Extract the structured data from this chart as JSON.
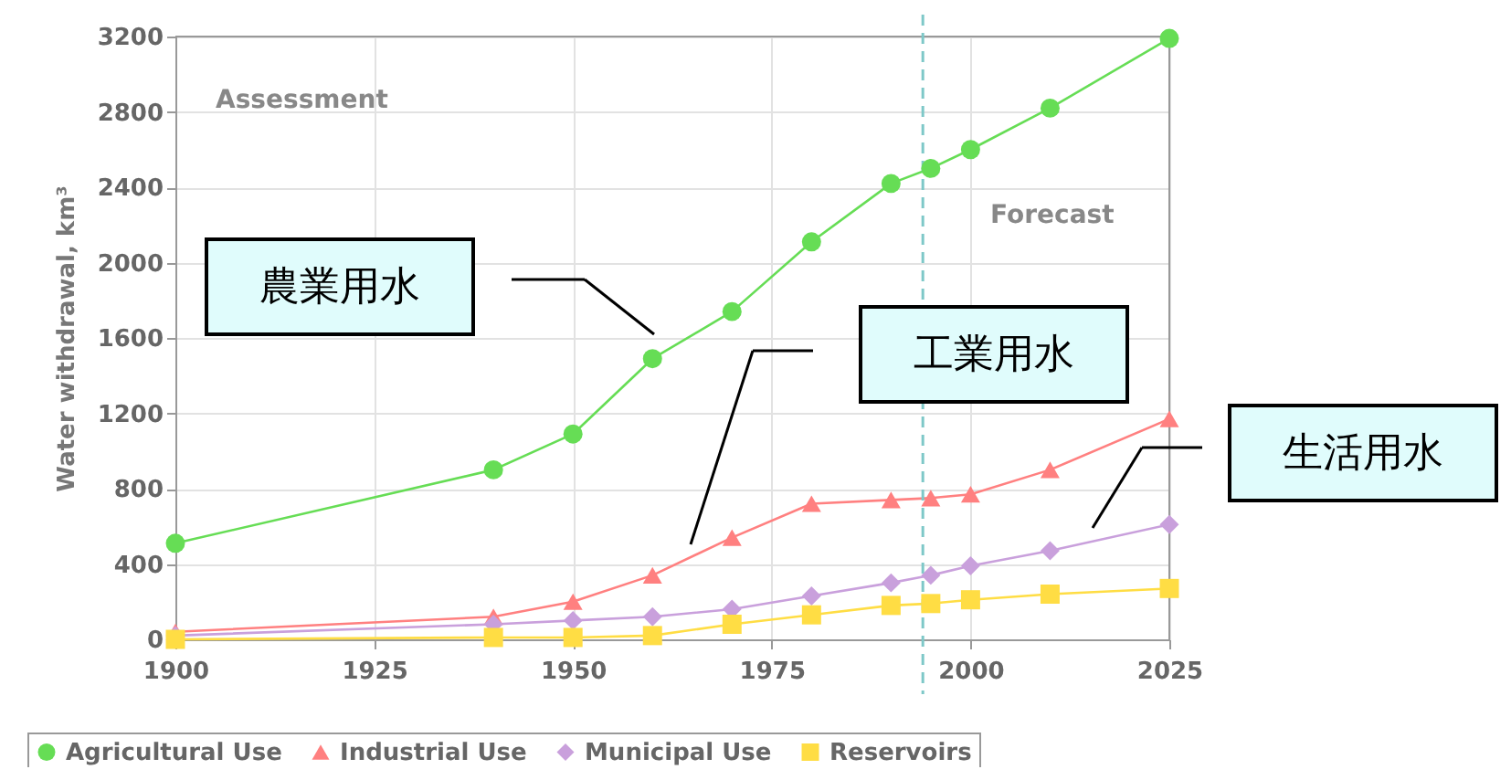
{
  "chart_data": {
    "type": "line",
    "ylabel": "Water withdrawal, km³",
    "x": [
      1900,
      1940,
      1950,
      1960,
      1970,
      1980,
      1990,
      1995,
      2000,
      2010,
      2025
    ],
    "series": [
      {
        "name": "Agricultural Use",
        "color": "#66dd55",
        "marker": "circle",
        "values": [
          510,
          900,
          1090,
          1490,
          1740,
          2110,
          2420,
          2500,
          2600,
          2820,
          3190
        ]
      },
      {
        "name": "Industrial Use",
        "color": "#ff8080",
        "marker": "triangle",
        "values": [
          40,
          120,
          200,
          340,
          540,
          720,
          740,
          750,
          770,
          900,
          1170
        ]
      },
      {
        "name": "Municipal Use",
        "color": "#c9a0dc",
        "marker": "diamond",
        "values": [
          20,
          80,
          100,
          120,
          160,
          230,
          300,
          340,
          390,
          470,
          610
        ]
      },
      {
        "name": "Reservoirs",
        "color": "#ffdd44",
        "marker": "square",
        "values": [
          0,
          10,
          10,
          20,
          80,
          130,
          180,
          190,
          210,
          240,
          270
        ]
      }
    ],
    "xlim": [
      1900,
      2025
    ],
    "xticks": [
      1900,
      1925,
      1950,
      1975,
      2000,
      2025
    ],
    "ylim": [
      0,
      3200
    ],
    "yticks": [
      0,
      400,
      800,
      1200,
      1600,
      2000,
      2400,
      2800,
      3200
    ],
    "ref_lines": [
      {
        "axis": "x",
        "value": 1994,
        "color": "#7ec8c8",
        "line_style": "dashed"
      }
    ],
    "annotations": [
      "Assessment",
      "Forecast",
      "農業用水",
      "工業用水",
      "生活用水"
    ],
    "grid": true,
    "legend": "bottom",
    "line_style": "solid"
  }
}
